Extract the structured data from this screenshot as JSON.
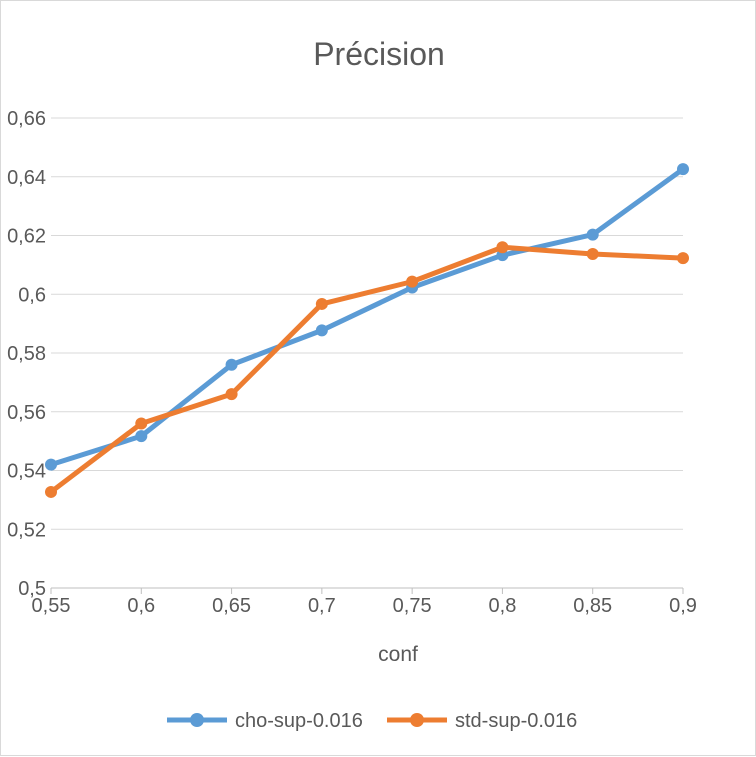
{
  "chart_data": {
    "type": "line",
    "title": "Précision",
    "xlabel": "conf",
    "ylabel": "",
    "x": [
      0.55,
      0.6,
      0.65,
      0.7,
      0.75,
      0.8,
      0.85,
      0.9
    ],
    "x_tick_labels": [
      "0,55",
      "0,6",
      "0,65",
      "0,7",
      "0,75",
      "0,8",
      "0,85",
      "0,9"
    ],
    "ylim": [
      0.5,
      0.66
    ],
    "y_tick_values": [
      0.5,
      0.52,
      0.54,
      0.56,
      0.58,
      0.6,
      0.62,
      0.64,
      0.66
    ],
    "y_tick_labels": [
      "0,5",
      "0,52",
      "0,54",
      "0,56",
      "0,58",
      "0,6",
      "0,62",
      "0,64",
      "0,66"
    ],
    "grid": true,
    "legend_position": "bottom",
    "series": [
      {
        "name": "cho-sup-0.016",
        "color": "#5B9BD5",
        "values": [
          0.542,
          0.5517,
          0.576,
          0.5877,
          0.6023,
          0.6133,
          0.6203,
          0.6426
        ]
      },
      {
        "name": "std-sup-0.016",
        "color": "#ED7D31",
        "values": [
          0.5327,
          0.556,
          0.566,
          0.5967,
          0.6043,
          0.616,
          0.6137,
          0.6123
        ]
      }
    ]
  }
}
